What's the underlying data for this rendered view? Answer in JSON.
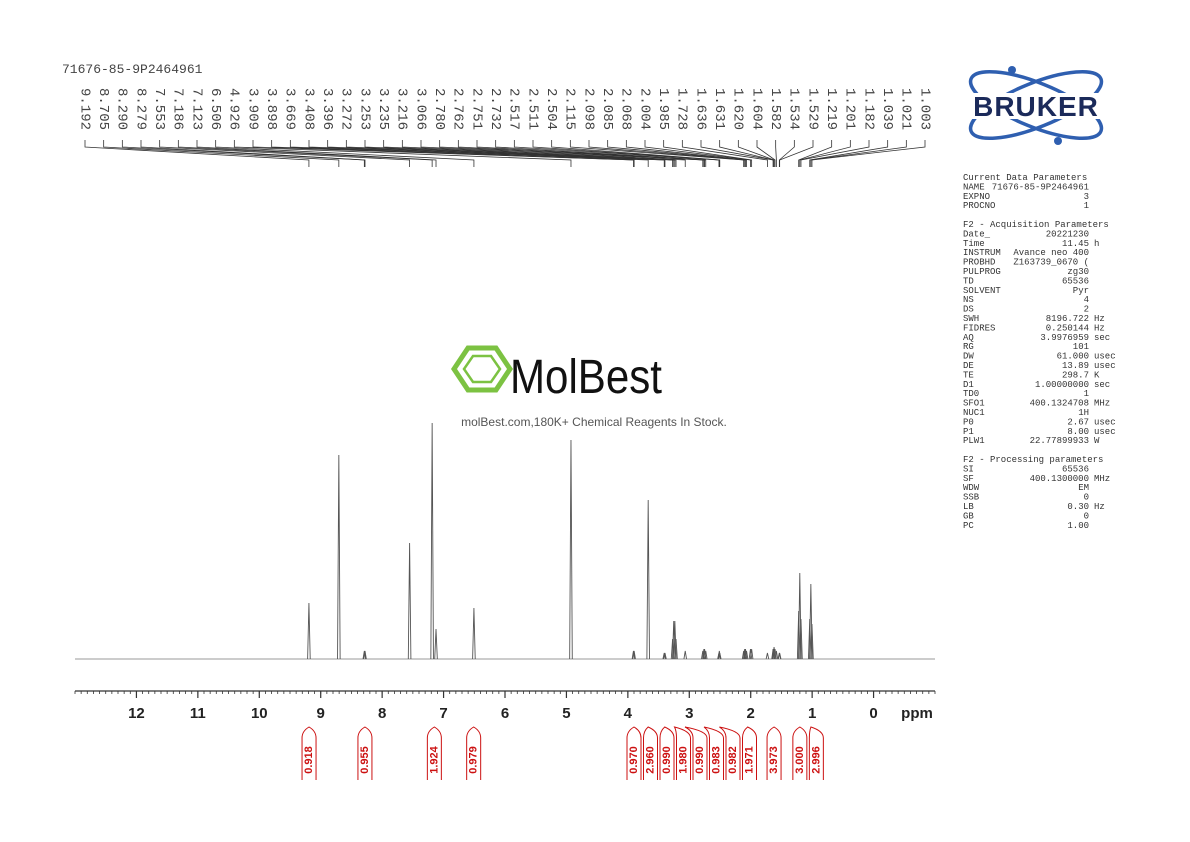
{
  "sample_id": "71676-85-9P2464961",
  "watermark": {
    "brand": "MolBest",
    "tagline": "molBest.com,180K+ Chemical Reagents In Stock."
  },
  "logo": "BRUKER",
  "parameters": [
    {
      "title": "Current Data Parameters",
      "rows": [
        [
          "NAME",
          "71676-85-9P2464961"
        ],
        [
          "EXPNO",
          "3"
        ],
        [
          "PROCNO",
          "1"
        ]
      ]
    },
    {
      "title": "F2 - Acquisition Parameters",
      "rows": [
        [
          "Date_",
          "20221230"
        ],
        [
          "Time",
          "11.45",
          "h"
        ],
        [
          "INSTRUM",
          "Avance neo 400"
        ],
        [
          "PROBHD",
          "Z163739_0670 ("
        ],
        [
          "PULPROG",
          "zg30"
        ],
        [
          "TD",
          "65536"
        ],
        [
          "SOLVENT",
          "Pyr"
        ],
        [
          "NS",
          "4"
        ],
        [
          "DS",
          "2"
        ],
        [
          "SWH",
          "8196.722",
          "Hz"
        ],
        [
          "FIDRES",
          "0.250144",
          "Hz"
        ],
        [
          "AQ",
          "3.9976959",
          "sec"
        ],
        [
          "RG",
          "101"
        ],
        [
          "DW",
          "61.000",
          "usec"
        ],
        [
          "DE",
          "13.89",
          "usec"
        ],
        [
          "TE",
          "298.7",
          "K"
        ],
        [
          "D1",
          "1.00000000",
          "sec"
        ],
        [
          "TD0",
          "1"
        ],
        [
          "SFO1",
          "400.1324708",
          "MHz"
        ],
        [
          "NUC1",
          "1H"
        ],
        [
          "P0",
          "2.67",
          "usec"
        ],
        [
          "P1",
          "8.00",
          "usec"
        ],
        [
          "PLW1",
          "22.77899933",
          "W"
        ]
      ]
    },
    {
      "title": "F2 - Processing parameters",
      "rows": [
        [
          "SI",
          "65536"
        ],
        [
          "SF",
          "400.1300000",
          "MHz"
        ],
        [
          "WDW",
          "EM"
        ],
        [
          "SSB",
          "0"
        ],
        [
          "LB",
          "0.30",
          "Hz"
        ],
        [
          "GB",
          "0"
        ],
        [
          "PC",
          "1.00"
        ]
      ]
    }
  ],
  "chart_data": {
    "type": "nmr",
    "x_label": "ppm",
    "xlim": [
      13,
      -1
    ],
    "xticks": [
      12,
      11,
      10,
      9,
      8,
      7,
      6,
      5,
      4,
      3,
      2,
      1,
      0
    ],
    "xminor_step": 0.1,
    "color": "#555555",
    "x": [
      9.192,
      8.705,
      8.29,
      8.279,
      7.553,
      7.186,
      7.123,
      6.506,
      4.926,
      3.909,
      3.898,
      3.669,
      3.408,
      3.396,
      3.272,
      3.253,
      3.235,
      3.216,
      3.066,
      2.78,
      2.762,
      2.751,
      2.732,
      2.517,
      2.511,
      2.504,
      2.115,
      2.098,
      2.085,
      2.068,
      2.004,
      1.985,
      1.728,
      1.636,
      1.631,
      1.62,
      1.604,
      1.582,
      1.534,
      1.529,
      1.219,
      1.201,
      1.182,
      1.039,
      1.021,
      1.003
    ],
    "values": [
      56,
      204,
      8,
      8,
      116,
      236,
      30,
      51,
      219,
      8,
      8,
      159,
      6,
      6,
      20,
      38,
      38,
      20,
      8,
      8,
      10,
      10,
      8,
      6,
      8,
      6,
      8,
      10,
      10,
      8,
      10,
      10,
      6,
      10,
      10,
      12,
      10,
      8,
      6,
      6,
      48,
      86,
      40,
      40,
      75,
      35
    ],
    "peak_labels": [
      {
        "value": 9.192,
        "label": "9.192"
      },
      {
        "value": 8.705,
        "label": "8.705"
      },
      {
        "value": 8.29,
        "label": "8.290"
      },
      {
        "value": 8.279,
        "label": "8.279"
      },
      {
        "value": 7.553,
        "label": "7.553"
      },
      {
        "value": 7.186,
        "label": "7.186"
      },
      {
        "value": 7.123,
        "label": "7.123"
      },
      {
        "value": 6.506,
        "label": "6.506"
      },
      {
        "value": 4.926,
        "label": "4.926"
      },
      {
        "value": 3.909,
        "label": "3.909"
      },
      {
        "value": 3.898,
        "label": "3.898"
      },
      {
        "value": 3.669,
        "label": "3.669"
      },
      {
        "value": 3.408,
        "label": "3.408"
      },
      {
        "value": 3.396,
        "label": "3.396"
      },
      {
        "value": 3.272,
        "label": "3.272"
      },
      {
        "value": 3.253,
        "label": "3.253"
      },
      {
        "value": 3.235,
        "label": "3.235"
      },
      {
        "value": 3.216,
        "label": "3.216"
      },
      {
        "value": 3.066,
        "label": "3.066"
      },
      {
        "value": 2.78,
        "label": "2.780"
      },
      {
        "value": 2.762,
        "label": "2.762"
      },
      {
        "value": 2.751,
        "label": "2.751"
      },
      {
        "value": 2.732,
        "label": "2.732"
      },
      {
        "value": 2.517,
        "label": "2.517"
      },
      {
        "value": 2.511,
        "label": "2.511"
      },
      {
        "value": 2.504,
        "label": "2.504"
      },
      {
        "value": 2.115,
        "label": "2.115"
      },
      {
        "value": 2.098,
        "label": "2.098"
      },
      {
        "value": 2.085,
        "label": "2.085"
      },
      {
        "value": 2.068,
        "label": "2.068"
      },
      {
        "value": 2.004,
        "label": "2.004"
      },
      {
        "value": 1.985,
        "label": "1.985"
      },
      {
        "value": 1.728,
        "label": "1.728"
      },
      {
        "value": 1.636,
        "label": "1.636"
      },
      {
        "value": 1.631,
        "label": "1.631"
      },
      {
        "value": 1.62,
        "label": "1.620"
      },
      {
        "value": 1.604,
        "label": "1.604"
      },
      {
        "value": 1.582,
        "label": "1.582"
      },
      {
        "value": 1.534,
        "label": "1.534"
      },
      {
        "value": 1.529,
        "label": "1.529"
      },
      {
        "value": 1.219,
        "label": "1.219"
      },
      {
        "value": 1.201,
        "label": "1.201"
      },
      {
        "value": 1.182,
        "label": "1.182"
      },
      {
        "value": 1.039,
        "label": "1.039"
      },
      {
        "value": 1.021,
        "label": "1.021"
      },
      {
        "value": 1.003,
        "label": "1.003"
      }
    ],
    "integral_color": "#cc1111",
    "integrals": [
      {
        "value": 0.918,
        "label": "0.918",
        "ppm": 9.19
      },
      {
        "value": 0.955,
        "label": "0.955",
        "ppm": 8.28
      },
      {
        "value": 1.924,
        "label": "1.924",
        "ppm": 7.15
      },
      {
        "value": 0.979,
        "label": "0.979",
        "ppm": 6.51
      },
      {
        "value": 0.97,
        "label": "0.970",
        "ppm": 3.9
      },
      {
        "value": 2.96,
        "label": "2.960",
        "ppm": 3.67
      },
      {
        "value": 0.99,
        "label": "0.990",
        "ppm": 3.4
      },
      {
        "value": 1.98,
        "label": "1.980",
        "ppm": 3.24
      },
      {
        "value": 0.99,
        "label": "0.990",
        "ppm": 3.07
      },
      {
        "value": 0.983,
        "label": "0.983",
        "ppm": 2.76
      },
      {
        "value": 0.982,
        "label": "0.982",
        "ppm": 2.51
      },
      {
        "value": 1.971,
        "label": "1.971",
        "ppm": 2.05
      },
      {
        "value": 3.973,
        "label": "3.973",
        "ppm": 1.62
      },
      {
        "value": 3,
        "label": "3.000",
        "ppm": 1.2
      },
      {
        "value": 2.996,
        "label": "2.996",
        "ppm": 1.02
      }
    ]
  }
}
